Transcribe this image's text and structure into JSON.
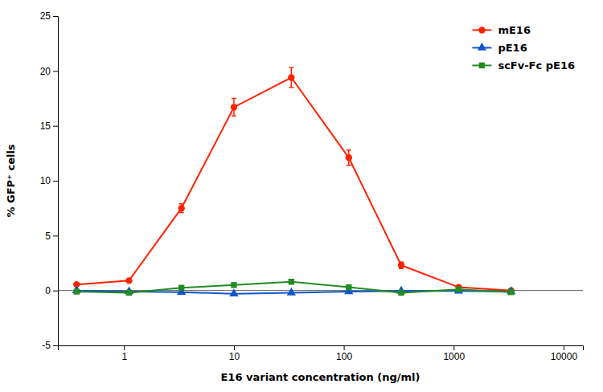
{
  "chart_data": {
    "type": "line",
    "log": "x",
    "xlabel": "E16 variant concentration (ng/ml)",
    "ylabel": "% GFP⁺ cells",
    "xlim": [
      0.25,
      15000
    ],
    "ylim": [
      -5,
      25
    ],
    "xticks": [
      1,
      10,
      100,
      1000,
      10000
    ],
    "yticks": [
      -5,
      0,
      5,
      10,
      15,
      20,
      25
    ],
    "grid": false,
    "legend": "upper right",
    "x": [
      0.37,
      1.11,
      3.33,
      10,
      33.3,
      111,
      333,
      1111,
      3333
    ],
    "series": [
      {
        "name": "mE16",
        "color": "#FF2200",
        "marker": "circle",
        "values": [
          0.55,
          0.9,
          7.5,
          16.7,
          19.4,
          12.1,
          2.3,
          0.3,
          0.0
        ],
        "errors": [
          0.1,
          0.15,
          0.4,
          0.8,
          0.9,
          0.7,
          0.3,
          0.1,
          0.05
        ]
      },
      {
        "name": "pE16",
        "color": "#1155CC",
        "marker": "triangle",
        "values": [
          0.0,
          -0.1,
          -0.15,
          -0.3,
          -0.2,
          -0.1,
          -0.05,
          -0.05,
          -0.1
        ],
        "errors": [
          0.05,
          0.05,
          0.05,
          0.1,
          0.05,
          0.05,
          0.03,
          0.03,
          0.03
        ]
      },
      {
        "name": "scFv-Fc pE16",
        "color": "#228B22",
        "marker": "square",
        "values": [
          -0.1,
          -0.2,
          0.25,
          0.5,
          0.8,
          0.3,
          -0.2,
          0.1,
          -0.15
        ],
        "errors": [
          0.05,
          0.08,
          0.1,
          0.15,
          0.2,
          0.1,
          0.08,
          0.05,
          0.05
        ]
      }
    ]
  }
}
